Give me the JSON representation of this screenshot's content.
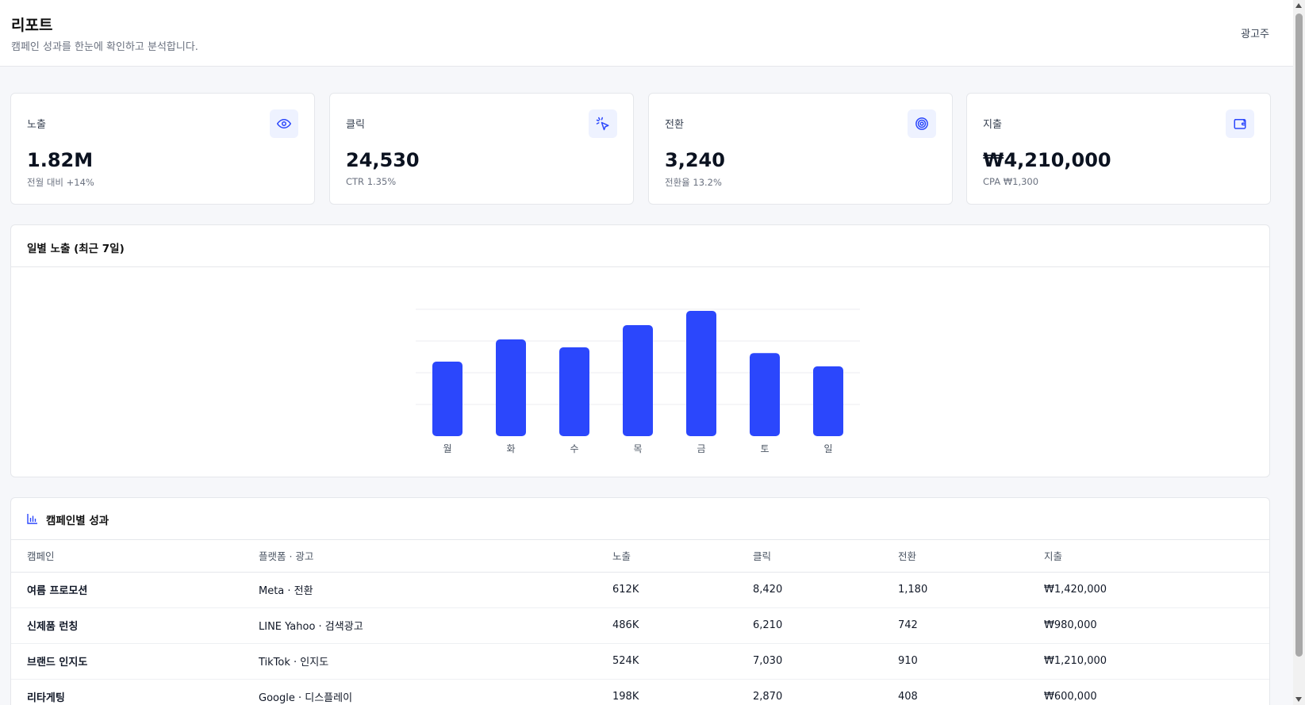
{
  "header": {
    "title": "리포트",
    "subtitle": "캠페인 성과를 한눈에 확인하고 분석합니다.",
    "account_label": "광고주"
  },
  "kpis": [
    {
      "label": "노출",
      "value": "1.82M",
      "sub": "전월 대비 +14%",
      "icon": "eye-icon"
    },
    {
      "label": "클릭",
      "value": "24,530",
      "sub": "CTR 1.35%",
      "icon": "pointer-click-icon"
    },
    {
      "label": "전환",
      "value": "3,240",
      "sub": "전환율 13.2%",
      "icon": "target-icon"
    },
    {
      "label": "지출",
      "value": "₩4,210,000",
      "sub": "CPA ₩1,300",
      "icon": "wallet-icon"
    }
  ],
  "chart": {
    "title": "일별 노출 (최근 7일)"
  },
  "chart_data": {
    "type": "bar",
    "title": "일별 노출 (최근 7일)",
    "categories": [
      "월",
      "화",
      "수",
      "목",
      "금",
      "토",
      "일"
    ],
    "values": [
      235,
      305,
      280,
      350,
      395,
      262,
      220
    ],
    "ylim": [
      0,
      400
    ],
    "grid": true,
    "color": "#2b47fc"
  },
  "table": {
    "title": "캠페인별 성과",
    "icon": "bar-chart-icon",
    "columns": [
      "캠페인",
      "플랫폼 · 광고",
      "노출",
      "클릭",
      "전환",
      "지출"
    ],
    "rows": [
      [
        "여름 프로모션",
        "Meta · 전환",
        "612K",
        "8,420",
        "1,180",
        "₩1,420,000"
      ],
      [
        "신제품 런칭",
        "LINE Yahoo · 검색광고",
        "486K",
        "6,210",
        "742",
        "₩980,000"
      ],
      [
        "브랜드 인지도",
        "TikTok · 인지도",
        "524K",
        "7,030",
        "910",
        "₩1,210,000"
      ],
      [
        "리타게팅",
        "Google · 디스플레이",
        "198K",
        "2,870",
        "408",
        "₩600,000"
      ]
    ]
  },
  "colors": {
    "accent": "#2b47fc",
    "icon_bg": "#eef2ff",
    "page_bg": "#f6f7fa"
  }
}
